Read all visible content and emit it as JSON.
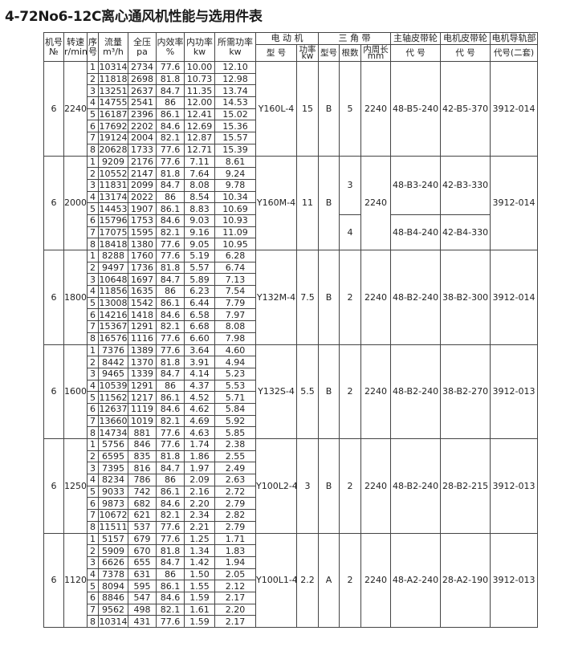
{
  "title": "4-72No6-12C离心通风机性能与选用件表",
  "headers": {
    "row1": [
      "机号",
      "转速",
      "序",
      "流量",
      "全压",
      "内效率",
      "内功率",
      "所需功率",
      "电 动 机",
      "三 角 带",
      "主轴皮带轮",
      "电机皮带轮",
      "电机导轨部"
    ],
    "row1_units": [
      "№",
      "r/min",
      "号",
      "m³/h",
      "pa",
      "%",
      "kw",
      "kw"
    ],
    "row2": [
      "型 号",
      "功率kw",
      "型号",
      "根数",
      "内周长mm",
      "代 号",
      "代 号",
      "代号(二套)"
    ]
  },
  "sections": [
    {
      "no": "6",
      "speed": "2240",
      "motor": "Y160L-4",
      "power": "15",
      "belt_type": "B",
      "belts": [
        {
          "count": "5",
          "main": "48-B5-240",
          "motor_pulley": "42-B5-370",
          "rows": 8
        }
      ],
      "length": "2240",
      "rail": "3912-014",
      "rows": [
        [
          "1",
          "10314",
          "2734",
          "77.6",
          "10.00",
          "12.10"
        ],
        [
          "2",
          "11818",
          "2698",
          "81.8",
          "10.73",
          "12.98"
        ],
        [
          "3",
          "13251",
          "2637",
          "84.7",
          "11.35",
          "13.74"
        ],
        [
          "4",
          "14755",
          "2541",
          "86",
          "12.00",
          "14.53"
        ],
        [
          "5",
          "16187",
          "2396",
          "86.1",
          "12.41",
          "15.02"
        ],
        [
          "6",
          "17692",
          "2202",
          "84.6",
          "12.69",
          "15.36"
        ],
        [
          "7",
          "19124",
          "2004",
          "82.1",
          "12.87",
          "15.57"
        ],
        [
          "8",
          "20628",
          "1733",
          "77.6",
          "12.71",
          "15.39"
        ]
      ]
    },
    {
      "no": "6",
      "speed": "2000",
      "motor": "Y160M-4",
      "power": "11",
      "belt_type": "B",
      "belts": [
        {
          "count": "3",
          "main": "48-B3-240",
          "motor_pulley": "42-B3-330",
          "rows": 5
        },
        {
          "count": "4",
          "main": "48-B4-240",
          "motor_pulley": "42-B4-330",
          "rows": 3
        }
      ],
      "length": "2240",
      "rail": "3912-014",
      "rows": [
        [
          "1",
          "9209",
          "2176",
          "77.6",
          "7.11",
          "8.61"
        ],
        [
          "2",
          "10552",
          "2147",
          "81.8",
          "7.64",
          "9.24"
        ],
        [
          "3",
          "11831",
          "2099",
          "84.7",
          "8.08",
          "9.78"
        ],
        [
          "4",
          "13174",
          "2022",
          "86",
          "8.54",
          "10.34"
        ],
        [
          "5",
          "14453",
          "1907",
          "86.1",
          "8.83",
          "10.69"
        ],
        [
          "6",
          "15796",
          "1753",
          "84.6",
          "9.03",
          "10.93"
        ],
        [
          "7",
          "17075",
          "1595",
          "82.1",
          "9.16",
          "11.09"
        ],
        [
          "8",
          "18418",
          "1380",
          "77.6",
          "9.05",
          "10.95"
        ]
      ]
    },
    {
      "no": "6",
      "speed": "1800",
      "motor": "Y132M-4",
      "power": "7.5",
      "belt_type": "B",
      "belts": [
        {
          "count": "2",
          "main": "48-B2-240",
          "motor_pulley": "38-B2-300",
          "rows": 8
        }
      ],
      "length": "2240",
      "rail": "3912-014",
      "rows": [
        [
          "1",
          "8288",
          "1760",
          "77.6",
          "5.19",
          "6.28"
        ],
        [
          "2",
          "9497",
          "1736",
          "81.8",
          "5.57",
          "6.74"
        ],
        [
          "3",
          "10648",
          "1697",
          "84.7",
          "5.89",
          "7.13"
        ],
        [
          "4",
          "11856",
          "1635",
          "86",
          "6.23",
          "7.54"
        ],
        [
          "5",
          "13008",
          "1542",
          "86.1",
          "6.44",
          "7.79"
        ],
        [
          "6",
          "14216",
          "1418",
          "84.6",
          "6.58",
          "7.97"
        ],
        [
          "7",
          "15367",
          "1291",
          "82.1",
          "6.68",
          "8.08"
        ],
        [
          "8",
          "16576",
          "1116",
          "77.6",
          "6.60",
          "7.98"
        ]
      ]
    },
    {
      "no": "6",
      "speed": "1600",
      "motor": "Y132S-4",
      "power": "5.5",
      "belt_type": "B",
      "belts": [
        {
          "count": "2",
          "main": "48-B2-240",
          "motor_pulley": "38-B2-270",
          "rows": 8
        }
      ],
      "length": "2240",
      "rail": "3912-013",
      "rows": [
        [
          "1",
          "7376",
          "1389",
          "77.6",
          "3.64",
          "4.60"
        ],
        [
          "2",
          "8442",
          "1370",
          "81.8",
          "3.91",
          "4.94"
        ],
        [
          "3",
          "9465",
          "1339",
          "84.7",
          "4.14",
          "5.23"
        ],
        [
          "4",
          "10539",
          "1291",
          "86",
          "4.37",
          "5.53"
        ],
        [
          "5",
          "11562",
          "1217",
          "86.1",
          "4.52",
          "5.71"
        ],
        [
          "6",
          "12637",
          "1119",
          "84.6",
          "4.62",
          "5.84"
        ],
        [
          "7",
          "13660",
          "1019",
          "82.1",
          "4.69",
          "5.92"
        ],
        [
          "8",
          "14734",
          "881",
          "77.6",
          "4.63",
          "5.85"
        ]
      ]
    },
    {
      "no": "6",
      "speed": "1250",
      "motor": "Y100L2-4",
      "power": "3",
      "belt_type": "B",
      "belts": [
        {
          "count": "2",
          "main": "48-B2-240",
          "motor_pulley": "28-B2-215",
          "rows": 8
        }
      ],
      "length": "2240",
      "rail": "3912-013",
      "rows": [
        [
          "1",
          "5756",
          "846",
          "77.6",
          "1.74",
          "2.38"
        ],
        [
          "2",
          "6595",
          "835",
          "81.8",
          "1.86",
          "2.55"
        ],
        [
          "3",
          "7395",
          "816",
          "84.7",
          "1.97",
          "2.49"
        ],
        [
          "4",
          "8234",
          "786",
          "86",
          "2.09",
          "2.63"
        ],
        [
          "5",
          "9033",
          "742",
          "86.1",
          "2.16",
          "2.72"
        ],
        [
          "6",
          "9873",
          "682",
          "84.6",
          "2.20",
          "2.79"
        ],
        [
          "7",
          "10672",
          "621",
          "82.1",
          "2.34",
          "2.82"
        ],
        [
          "8",
          "11511",
          "537",
          "77.6",
          "2.21",
          "2.79"
        ]
      ]
    },
    {
      "no": "6",
      "speed": "1120",
      "motor": "Y100L1-4",
      "power": "2.2",
      "belt_type": "A",
      "belts": [
        {
          "count": "2",
          "main": "48-A2-240",
          "motor_pulley": "28-A2-190",
          "rows": 8
        }
      ],
      "length": "2240",
      "rail": "3912-013",
      "rows": [
        [
          "1",
          "5157",
          "679",
          "77.6",
          "1.25",
          "1.71"
        ],
        [
          "2",
          "5909",
          "670",
          "81.8",
          "1.34",
          "1.83"
        ],
        [
          "3",
          "6626",
          "655",
          "84.7",
          "1.42",
          "1.94"
        ],
        [
          "4",
          "7378",
          "631",
          "86",
          "1.50",
          "2.05"
        ],
        [
          "5",
          "8094",
          "595",
          "86.1",
          "1.55",
          "2.12"
        ],
        [
          "6",
          "8846",
          "547",
          "84.6",
          "1.59",
          "2.17"
        ],
        [
          "7",
          "9562",
          "498",
          "82.1",
          "1.61",
          "2.20"
        ],
        [
          "8",
          "10314",
          "431",
          "77.6",
          "1.59",
          "2.17"
        ]
      ]
    }
  ]
}
